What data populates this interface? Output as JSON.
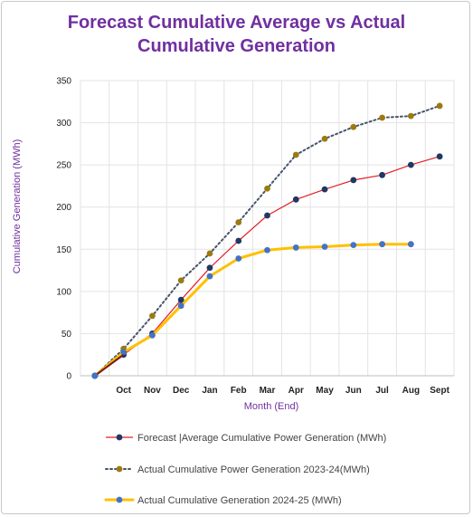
{
  "chart_data": {
    "type": "line",
    "title_line1": "Forecast Cumulative Average vs Actual",
    "title_line2": "Cumulative Generation",
    "xlabel": "Month (End)",
    "ylabel": "Cumulative  Generation (MWh)",
    "categories": [
      "",
      "Oct",
      "Nov",
      "Dec",
      "Jan",
      "Feb",
      "Mar",
      "Apr",
      "May",
      "Jun",
      "Jul",
      "Aug",
      "Sept"
    ],
    "ylim": [
      0,
      350
    ],
    "yticks": [
      0,
      50,
      100,
      150,
      200,
      250,
      300,
      350
    ],
    "grid": true,
    "legend_position": "bottom",
    "series": [
      {
        "name": "Forecast  |Average Cumulative Power Generation  (MWh)",
        "values": [
          0,
          25,
          50,
          90,
          128,
          160,
          190,
          209,
          221,
          232,
          238,
          250,
          260
        ],
        "line_color": "#e41e26",
        "marker_color": "#1f3864",
        "style": "solid"
      },
      {
        "name": "Actual  Cumulative Power Generation 2023-24(MWh)",
        "values": [
          0,
          32,
          71,
          113,
          145,
          182,
          222,
          262,
          281,
          295,
          306,
          308,
          320
        ],
        "line_color": "#44546a",
        "marker_color": "#9c7a10",
        "style": "dotted"
      },
      {
        "name": "Actual Cumulative Generation 2024-25 (MWh)",
        "values": [
          0,
          28,
          48,
          83,
          118,
          139,
          149,
          152,
          153,
          155,
          156,
          156,
          null
        ],
        "line_color": "#ffc000",
        "marker_color": "#4472c4",
        "style": "thick"
      }
    ]
  }
}
